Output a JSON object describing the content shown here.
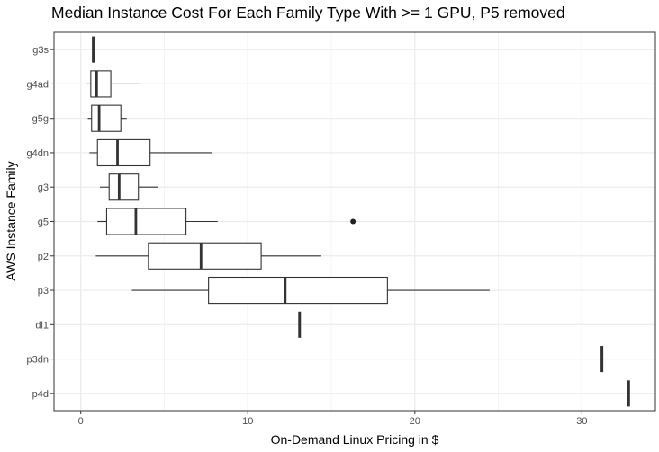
{
  "chart_data": {
    "type": "boxplot",
    "title": "Median Instance Cost For Each Family Type With >= 1 GPU, P5 removed",
    "xlabel": "On-Demand Linux Pricing in $",
    "ylabel": "AWS Instance Family",
    "xlim": [
      -1.6,
      34.4
    ],
    "xticks": [
      0,
      10,
      20,
      30
    ],
    "grid": true,
    "categories": [
      "g3s",
      "g4ad",
      "g5g",
      "g4dn",
      "g3",
      "g5",
      "p2",
      "p3",
      "dl1",
      "p3dn",
      "p4d"
    ],
    "boxes": [
      {
        "category": "g3s",
        "min": 0.75,
        "q1": 0.75,
        "median": 0.75,
        "q3": 0.75,
        "max": 0.75,
        "outliers": []
      },
      {
        "category": "g4ad",
        "min": 0.38,
        "q1": 0.6,
        "median": 0.95,
        "q3": 1.8,
        "max": 3.5,
        "outliers": []
      },
      {
        "category": "g5g",
        "min": 0.42,
        "q1": 0.65,
        "median": 1.1,
        "q3": 2.4,
        "max": 2.75,
        "outliers": []
      },
      {
        "category": "g4dn",
        "min": 0.52,
        "q1": 1.0,
        "median": 2.2,
        "q3": 4.15,
        "max": 7.85,
        "outliers": []
      },
      {
        "category": "g3",
        "min": 1.15,
        "q1": 1.7,
        "median": 2.3,
        "q3": 3.45,
        "max": 4.6,
        "outliers": []
      },
      {
        "category": "g5",
        "min": 1.0,
        "q1": 1.55,
        "median": 3.3,
        "q3": 6.3,
        "max": 8.2,
        "outliers": [
          16.3
        ]
      },
      {
        "category": "p2",
        "min": 0.9,
        "q1": 4.05,
        "median": 7.2,
        "q3": 10.8,
        "max": 14.4,
        "outliers": []
      },
      {
        "category": "p3",
        "min": 3.06,
        "q1": 7.65,
        "median": 12.24,
        "q3": 18.36,
        "max": 24.48,
        "outliers": []
      },
      {
        "category": "dl1",
        "min": 13.1,
        "q1": 13.1,
        "median": 13.1,
        "q3": 13.1,
        "max": 13.1,
        "outliers": []
      },
      {
        "category": "p3dn",
        "min": 31.2,
        "q1": 31.2,
        "median": 31.2,
        "q3": 31.2,
        "max": 31.2,
        "outliers": []
      },
      {
        "category": "p4d",
        "min": 32.8,
        "q1": 32.8,
        "median": 32.8,
        "q3": 32.8,
        "max": 32.8,
        "outliers": []
      }
    ]
  }
}
